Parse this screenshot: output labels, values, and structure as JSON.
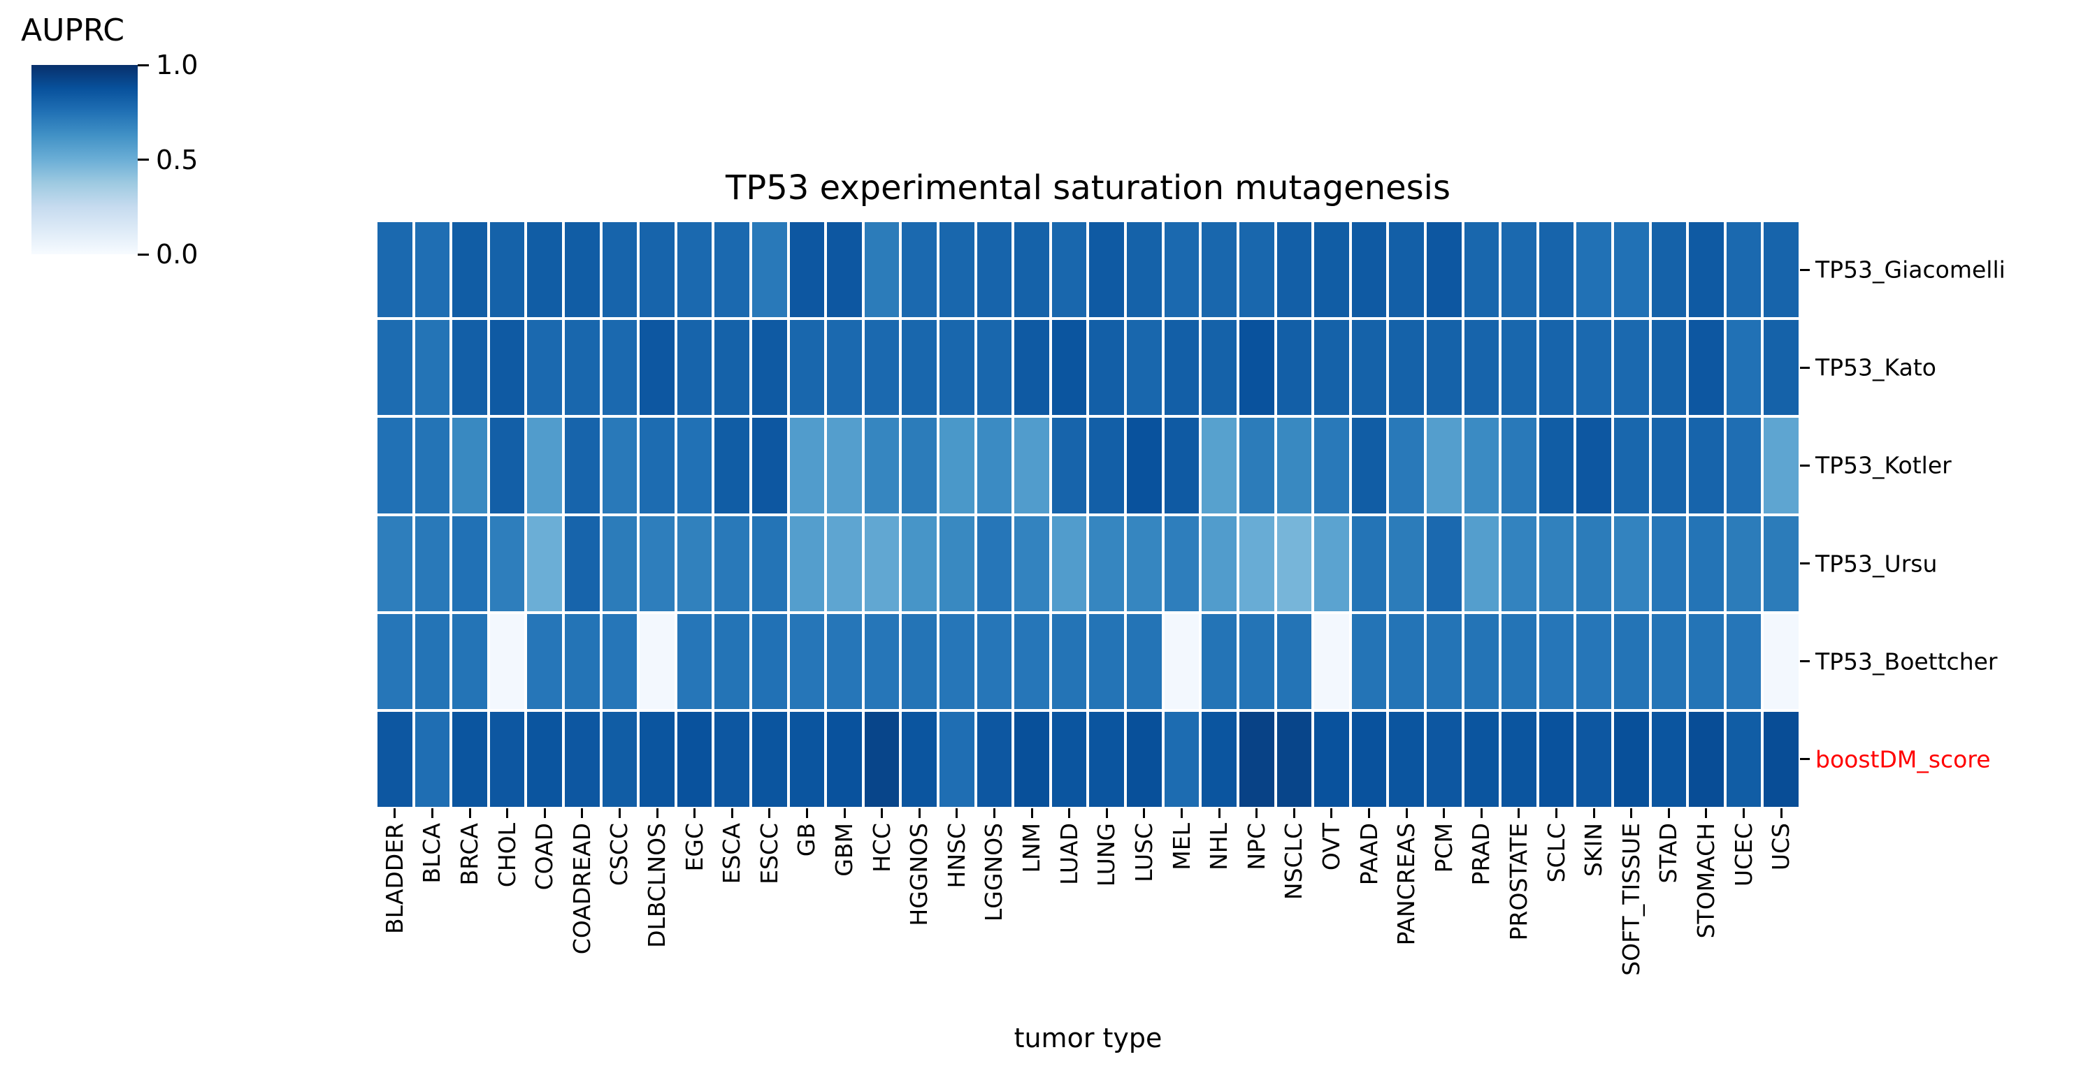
{
  "figure": {
    "title": "TP53 experimental saturation mutagenesis",
    "xlabel": "tumor type",
    "colorbar": {
      "label": "AUPRC",
      "ticks": [
        {
          "value": 1.0,
          "label": "1.0"
        },
        {
          "value": 0.5,
          "label": "0.5"
        },
        {
          "value": 0.0,
          "label": "0.0"
        }
      ]
    },
    "highlight_color": "#ff0000"
  },
  "chart_data": {
    "type": "heatmap",
    "title": "TP53 experimental saturation mutagenesis",
    "xlabel": "tumor type",
    "legend_label": "AUPRC",
    "colormap": "Blues",
    "vmin": 0.0,
    "vmax": 1.0,
    "grid": false,
    "legend_position": "upper-left",
    "columns": [
      "BLADDER",
      "BLCA",
      "BRCA",
      "CHOL",
      "COAD",
      "COADREAD",
      "CSCC",
      "DLBCLNOS",
      "EGC",
      "ESCA",
      "ESCC",
      "GB",
      "GBM",
      "HCC",
      "HGGNOS",
      "HNSC",
      "LGGNOS",
      "LNM",
      "LUAD",
      "LUNG",
      "LUSC",
      "MEL",
      "NHL",
      "NPC",
      "NSCLC",
      "OVT",
      "PAAD",
      "PANCREAS",
      "PCM",
      "PRAD",
      "PROSTATE",
      "SCLC",
      "SKIN",
      "SOFT_TISSUE",
      "STAD",
      "STOMACH",
      "UCEC",
      "UCS"
    ],
    "rows": [
      {
        "label": "TP53_Giacomelli",
        "label_color": "#000000",
        "values": [
          0.78,
          0.76,
          0.83,
          0.81,
          0.83,
          0.83,
          0.8,
          0.8,
          0.78,
          0.78,
          0.72,
          0.85,
          0.85,
          0.71,
          0.78,
          0.79,
          0.8,
          0.81,
          0.79,
          0.84,
          0.81,
          0.78,
          0.79,
          0.79,
          0.82,
          0.83,
          0.84,
          0.82,
          0.85,
          0.79,
          0.78,
          0.8,
          0.75,
          0.75,
          0.81,
          0.84,
          0.78,
          0.8
        ]
      },
      {
        "label": "TP53_Kato",
        "label_color": "#000000",
        "values": [
          0.77,
          0.74,
          0.82,
          0.84,
          0.78,
          0.79,
          0.78,
          0.85,
          0.8,
          0.81,
          0.84,
          0.79,
          0.78,
          0.78,
          0.79,
          0.79,
          0.79,
          0.84,
          0.86,
          0.82,
          0.79,
          0.82,
          0.81,
          0.87,
          0.82,
          0.81,
          0.81,
          0.81,
          0.81,
          0.8,
          0.79,
          0.8,
          0.78,
          0.78,
          0.81,
          0.85,
          0.75,
          0.81
        ]
      },
      {
        "label": "TP53_Kotler",
        "label_color": "#000000",
        "values": [
          0.75,
          0.74,
          0.66,
          0.82,
          0.58,
          0.8,
          0.72,
          0.77,
          0.75,
          0.83,
          0.85,
          0.58,
          0.57,
          0.67,
          0.71,
          0.6,
          0.65,
          0.58,
          0.8,
          0.82,
          0.87,
          0.84,
          0.56,
          0.71,
          0.66,
          0.72,
          0.83,
          0.72,
          0.57,
          0.65,
          0.72,
          0.83,
          0.85,
          0.79,
          0.8,
          0.8,
          0.76,
          0.54
        ]
      },
      {
        "label": "TP53_Ursu",
        "label_color": "#000000",
        "values": [
          0.7,
          0.72,
          0.75,
          0.7,
          0.5,
          0.8,
          0.71,
          0.7,
          0.69,
          0.72,
          0.74,
          0.57,
          0.54,
          0.53,
          0.61,
          0.66,
          0.73,
          0.68,
          0.58,
          0.67,
          0.67,
          0.7,
          0.58,
          0.51,
          0.47,
          0.55,
          0.74,
          0.71,
          0.78,
          0.57,
          0.68,
          0.69,
          0.71,
          0.68,
          0.73,
          0.74,
          0.71,
          0.71
        ]
      },
      {
        "label": "TP53_Boettcher",
        "label_color": "#000000",
        "values": [
          0.73,
          0.74,
          0.74,
          0.02,
          0.73,
          0.74,
          0.73,
          0.02,
          0.73,
          0.74,
          0.75,
          0.73,
          0.73,
          0.73,
          0.74,
          0.73,
          0.73,
          0.73,
          0.74,
          0.74,
          0.74,
          0.02,
          0.74,
          0.74,
          0.74,
          0.02,
          0.74,
          0.74,
          0.74,
          0.74,
          0.74,
          0.73,
          0.73,
          0.74,
          0.74,
          0.74,
          0.73,
          0.02
        ]
      },
      {
        "label": "boostDM_score",
        "label_color": "#ff0000",
        "values": [
          0.85,
          0.76,
          0.86,
          0.85,
          0.86,
          0.85,
          0.83,
          0.86,
          0.87,
          0.85,
          0.86,
          0.86,
          0.87,
          0.92,
          0.86,
          0.76,
          0.85,
          0.88,
          0.86,
          0.86,
          0.88,
          0.77,
          0.86,
          0.93,
          0.92,
          0.87,
          0.87,
          0.86,
          0.85,
          0.86,
          0.86,
          0.87,
          0.85,
          0.88,
          0.86,
          0.89,
          0.83,
          0.89
        ]
      }
    ]
  }
}
